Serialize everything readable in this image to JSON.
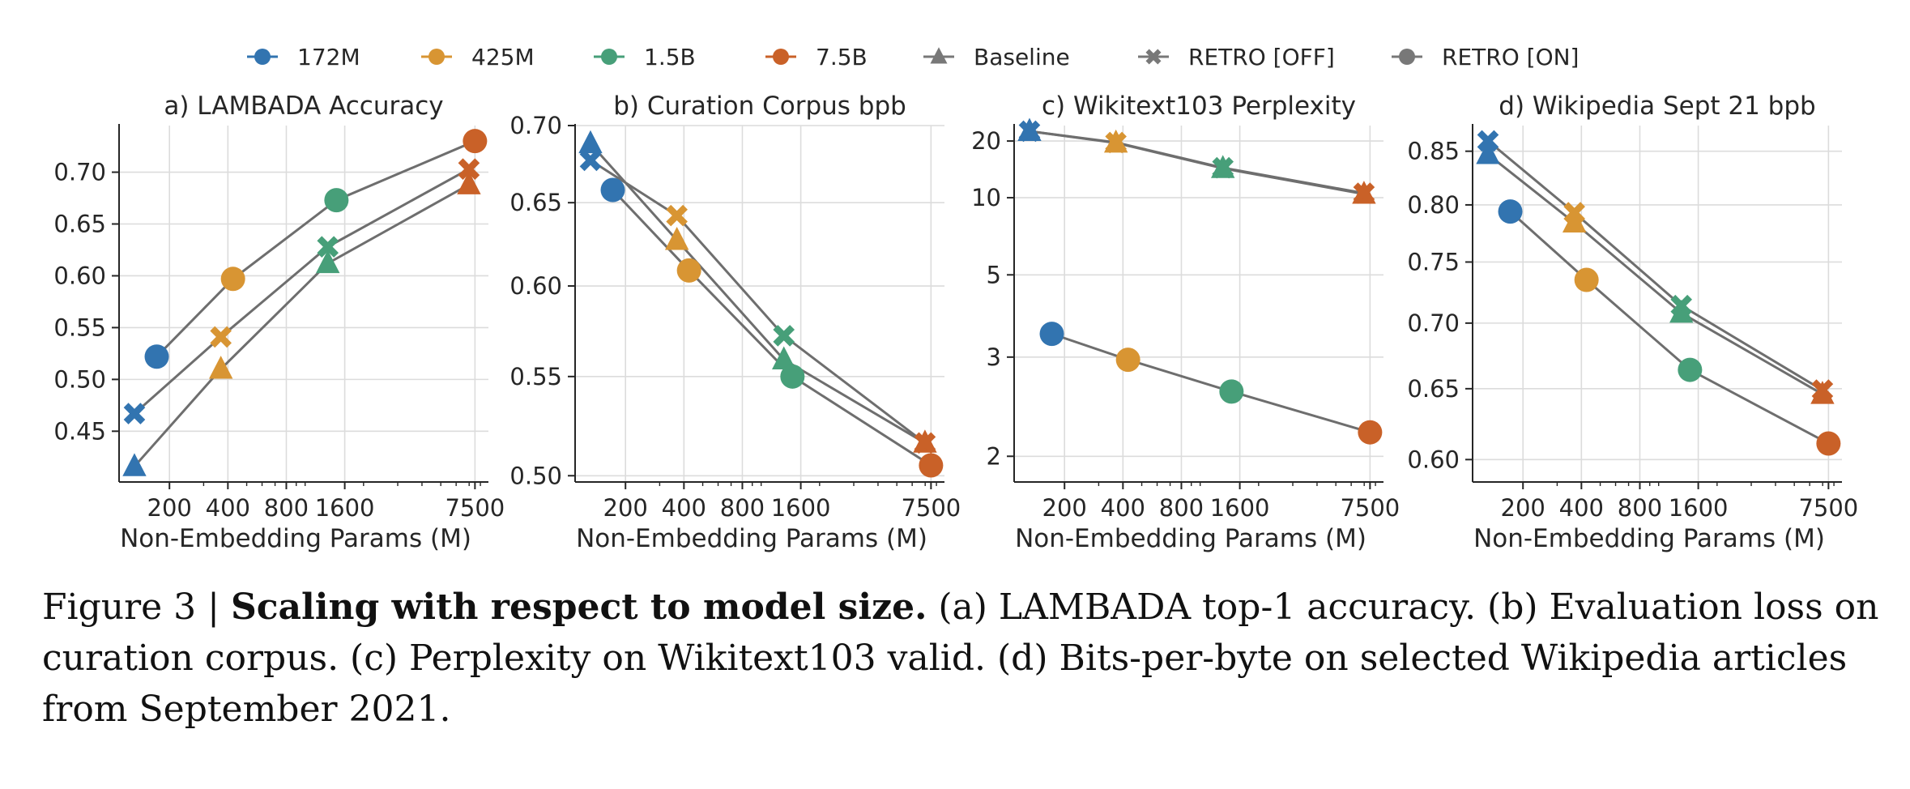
{
  "legend": {
    "items": [
      {
        "label": "172M",
        "color": "#3274b0",
        "marker": "circle",
        "kind": "size"
      },
      {
        "label": "425M",
        "color": "#d89533",
        "marker": "circle",
        "kind": "size"
      },
      {
        "label": "1.5B",
        "color": "#479f79",
        "marker": "circle",
        "kind": "size"
      },
      {
        "label": "7.5B",
        "color": "#c96128",
        "marker": "circle",
        "kind": "size"
      },
      {
        "label": "Baseline",
        "color": "#787878",
        "marker": "triangle",
        "kind": "model"
      },
      {
        "label": "RETRO [OFF]",
        "color": "#787878",
        "marker": "x",
        "kind": "model"
      },
      {
        "label": "RETRO [ON]",
        "color": "#787878",
        "marker": "circle",
        "kind": "model"
      }
    ]
  },
  "chart_data": [
    {
      "type": "scatter",
      "title": "a) LAMBADA Accuracy",
      "xlabel": "Non-Embedding Params (M)",
      "ylabel": "",
      "xscale": "log",
      "xticks": [
        200,
        400,
        800,
        1600,
        7500
      ],
      "xtick_labels": [
        "200",
        "400",
        "800",
        "1600",
        "7500"
      ],
      "xlim": [
        110,
        8800
      ],
      "yticks": [
        0.45,
        0.5,
        0.55,
        0.6,
        0.65,
        0.7
      ],
      "ytick_labels": [
        "0.45",
        "0.50",
        "0.55",
        "0.60",
        "0.65",
        "0.70"
      ],
      "ylim": [
        0.401,
        0.745
      ],
      "grid": true,
      "size_colors": [
        "#3274b0",
        "#d89533",
        "#479f79",
        "#c96128"
      ],
      "series": [
        {
          "name": "Baseline",
          "marker": "triangle",
          "x": [
            132,
            368,
            1309,
            6982
          ],
          "y": [
            0.416,
            0.51,
            0.612,
            0.688
          ]
        },
        {
          "name": "RETRO [OFF]",
          "marker": "x",
          "x": [
            132,
            368,
            1309,
            6982
          ],
          "y": [
            0.467,
            0.541,
            0.628,
            0.703
          ]
        },
        {
          "name": "RETRO [ON]",
          "marker": "circle",
          "x": [
            172,
            425,
            1450,
            7500
          ],
          "y": [
            0.522,
            0.597,
            0.673,
            0.73
          ]
        }
      ]
    },
    {
      "type": "scatter",
      "title": "b) Curation Corpus bpb",
      "xlabel": "Non-Embedding Params (M)",
      "ylabel": "",
      "xscale": "log",
      "xticks": [
        200,
        400,
        800,
        1600,
        7500
      ],
      "xtick_labels": [
        "200",
        "400",
        "800",
        "1600",
        "7500"
      ],
      "xlim": [
        110,
        8800
      ],
      "yticks": [
        0.5,
        0.55,
        0.6,
        0.65,
        0.7
      ],
      "ytick_labels": [
        "0.50",
        "0.55",
        "0.60",
        "0.65",
        "0.70"
      ],
      "ylim": [
        0.497,
        0.7
      ],
      "grid": true,
      "size_colors": [
        "#3274b0",
        "#d89533",
        "#479f79",
        "#c96128"
      ],
      "series": [
        {
          "name": "Baseline",
          "marker": "triangle",
          "x": [
            132,
            368,
            1309,
            6982
          ],
          "y": [
            0.688,
            0.627,
            0.559,
            0.516
          ]
        },
        {
          "name": "RETRO [OFF]",
          "marker": "x",
          "x": [
            132,
            368,
            1309,
            6982
          ],
          "y": [
            0.677,
            0.642,
            0.572,
            0.516
          ]
        },
        {
          "name": "RETRO [ON]",
          "marker": "circle",
          "x": [
            172,
            425,
            1450,
            7500
          ],
          "y": [
            0.658,
            0.609,
            0.55,
            0.505
          ]
        }
      ]
    },
    {
      "type": "scatter",
      "title": "c) Wikitext103 Perplexity",
      "xlabel": "Non-Embedding Params (M)",
      "ylabel": "",
      "xscale": "log",
      "xticks": [
        200,
        400,
        800,
        1600,
        7500
      ],
      "xtick_labels": [
        "200",
        "400",
        "800",
        "1600",
        "7500"
      ],
      "xlim": [
        110,
        8800
      ],
      "yticks": [
        2,
        3,
        5,
        10,
        20
      ],
      "ytick_labels": [
        "2",
        "3",
        "5",
        "10",
        "20"
      ],
      "ylim": [
        1.85,
        25
      ],
      "grid": true,
      "size_colors": [
        "#3274b0",
        "#d89533",
        "#479f79",
        "#c96128"
      ],
      "series": [
        {
          "name": "Baseline",
          "marker": "triangle",
          "x": [
            132,
            368,
            1309,
            6982
          ],
          "y": [
            23.0,
            19.5,
            14.0,
            10.4
          ]
        },
        {
          "name": "RETRO [OFF]",
          "marker": "x",
          "x": [
            132,
            368,
            1309,
            6982
          ],
          "y": [
            23.0,
            19.6,
            14.1,
            10.5
          ]
        },
        {
          "name": "RETRO [ON]",
          "marker": "circle",
          "x": [
            172,
            425,
            1450,
            7500
          ],
          "y": [
            3.4,
            2.96,
            2.55,
            2.17
          ]
        }
      ]
    },
    {
      "type": "scatter",
      "title": "d) Wikipedia Sept 21 bpb",
      "xlabel": "Non-Embedding Params (M)",
      "ylabel": "",
      "xscale": "log",
      "xticks": [
        200,
        400,
        800,
        1600,
        7500
      ],
      "xtick_labels": [
        "200",
        "400",
        "800",
        "1600",
        "7500"
      ],
      "xlim": [
        110,
        8800
      ],
      "yticks": [
        0.6,
        0.65,
        0.7,
        0.75,
        0.8,
        0.85
      ],
      "ytick_labels": [
        "0.60",
        "0.65",
        "0.70",
        "0.75",
        "0.80",
        "0.85"
      ],
      "ylim": [
        0.585,
        0.875
      ],
      "grid": true,
      "size_colors": [
        "#3274b0",
        "#d89533",
        "#479f79",
        "#c96128"
      ],
      "series": [
        {
          "name": "Baseline",
          "marker": "triangle",
          "x": [
            132,
            368,
            1309,
            6982
          ],
          "y": [
            0.847,
            0.784,
            0.708,
            0.646
          ]
        },
        {
          "name": "RETRO [OFF]",
          "marker": "x",
          "x": [
            132,
            368,
            1309,
            6982
          ],
          "y": [
            0.86,
            0.793,
            0.714,
            0.649
          ]
        },
        {
          "name": "RETRO [ON]",
          "marker": "circle",
          "x": [
            172,
            425,
            1450,
            7500
          ],
          "y": [
            0.794,
            0.735,
            0.664,
            0.611
          ]
        }
      ]
    }
  ],
  "caption": {
    "prefix": "Figure 3 | ",
    "bold": "Scaling with respect to model size.",
    "text": " (a) LAMBADA top-1 accuracy. (b) Evaluation loss on curation corpus. (c) Perplexity on Wikitext103 valid. (d) Bits-per-byte on selected Wikipedia articles from September 2021."
  }
}
